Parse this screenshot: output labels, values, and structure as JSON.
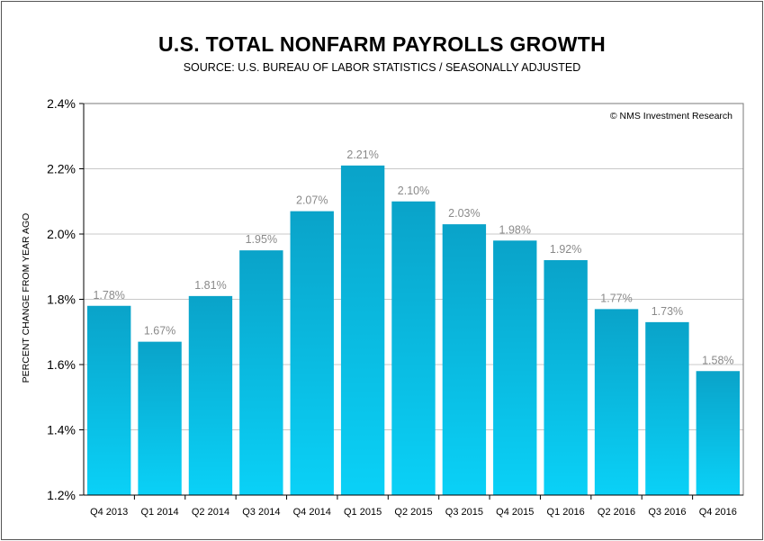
{
  "chart_data": {
    "type": "bar",
    "title": "U.S. TOTAL NONFARM PAYROLLS GROWTH",
    "subtitle": "SOURCE: U.S. BUREAU OF LABOR STATISTICS / SEASONALLY ADJUSTED",
    "ylabel": "PERCENT CHANGE FROM YEAR AGO",
    "xlabel": "",
    "credit": "© NMS Investment Research",
    "categories": [
      "Q4 2013",
      "Q1 2014",
      "Q2 2014",
      "Q3 2014",
      "Q4 2014",
      "Q1 2015",
      "Q2 2015",
      "Q3 2015",
      "Q4 2015",
      "Q1 2016",
      "Q2 2016",
      "Q3 2016",
      "Q4 2016"
    ],
    "values": [
      1.78,
      1.67,
      1.81,
      1.95,
      2.07,
      2.21,
      2.1,
      2.03,
      1.98,
      1.92,
      1.77,
      1.73,
      1.58
    ],
    "value_labels": [
      "1.78%",
      "1.67%",
      "1.81%",
      "1.95%",
      "2.07%",
      "2.21%",
      "2.10%",
      "2.03%",
      "1.98%",
      "1.92%",
      "1.77%",
      "1.73%",
      "1.58%"
    ],
    "ylim": [
      1.2,
      2.4
    ],
    "yticks": [
      1.2,
      1.4,
      1.6,
      1.8,
      2.0,
      2.2,
      2.4
    ],
    "ytick_labels": [
      "1.2%",
      "1.4%",
      "1.6%",
      "1.8%",
      "2.0%",
      "2.2%",
      "2.4%"
    ],
    "grid": true,
    "legend": "none",
    "colors": {
      "bar_top": "#0aa3c9",
      "bar_bottom": "#0ad1f7",
      "value_label": "#8a8a8a",
      "grid": "#c8c8c8"
    }
  }
}
